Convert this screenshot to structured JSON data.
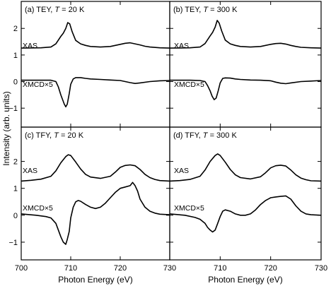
{
  "chart_data": {
    "type": "line",
    "xlabel": "Photon Energy (eV)",
    "ylabel": "Intensity (arb. units)",
    "xlim": [
      700,
      730
    ],
    "ylim": [
      -1.5,
      2.75
    ],
    "x_ticks": [
      700,
      710,
      720,
      730
    ],
    "y_ticks": [
      -1,
      0,
      1,
      2
    ],
    "grid": false,
    "panels": [
      {
        "id": "a",
        "title_prefix": "(a) TEY, ",
        "title_var": "T",
        "title_suffix": " = 20 K",
        "series": [
          {
            "name": "XAS",
            "x": [
              700,
              704,
              706,
              707,
              708,
              708.5,
              709,
              709.4,
              709.8,
              710.3,
              711,
              712,
              713,
              714,
              716,
              718,
              720,
              721,
              722,
              723,
              724,
              725,
              726,
              728,
              730
            ],
            "y": [
              1.26,
              1.27,
              1.3,
              1.42,
              1.7,
              1.82,
              2.0,
              2.22,
              2.17,
              1.87,
              1.55,
              1.42,
              1.36,
              1.32,
              1.3,
              1.32,
              1.4,
              1.44,
              1.46,
              1.42,
              1.38,
              1.33,
              1.3,
              1.27,
              1.26
            ]
          },
          {
            "name": "XMCD×5",
            "x": [
              700,
              704,
              706,
              707,
              707.5,
              708,
              708.3,
              708.7,
              709,
              709.3,
              709.7,
              710,
              710.5,
              711,
              712,
              713,
              714,
              716,
              718,
              720,
              721,
              722,
              723,
              724,
              726,
              728,
              730
            ],
            "y": [
              0.05,
              0.05,
              0.05,
              0.0,
              -0.2,
              -0.5,
              -0.65,
              -0.85,
              -0.95,
              -0.85,
              -0.45,
              -0.1,
              0.1,
              0.15,
              0.15,
              0.12,
              0.1,
              0.08,
              0.06,
              0.04,
              0.0,
              -0.04,
              -0.07,
              -0.05,
              0.0,
              0.03,
              0.04
            ]
          }
        ]
      },
      {
        "id": "b",
        "title_prefix": "(b) TEY, ",
        "title_var": "T",
        "title_suffix": " = 300 K",
        "series": [
          {
            "name": "XAS",
            "x": [
              700,
              704,
              706,
              707,
              708,
              708.5,
              709,
              709.4,
              709.8,
              710.3,
              711,
              712,
              713,
              714,
              716,
              718,
              720,
              721,
              722,
              723,
              724,
              725,
              726,
              728,
              730
            ],
            "y": [
              1.26,
              1.27,
              1.3,
              1.43,
              1.72,
              1.85,
              2.05,
              2.3,
              2.2,
              1.9,
              1.56,
              1.42,
              1.36,
              1.32,
              1.3,
              1.32,
              1.4,
              1.43,
              1.44,
              1.41,
              1.36,
              1.32,
              1.29,
              1.27,
              1.26
            ]
          },
          {
            "name": "XMCD×5",
            "x": [
              700,
              704,
              706,
              707,
              707.5,
              708,
              708.4,
              708.8,
              709.2,
              709.6,
              710,
              710.5,
              711,
              712,
              713,
              714,
              716,
              718,
              720,
              721,
              722,
              723,
              724,
              726,
              728,
              730
            ],
            "y": [
              0.05,
              0.05,
              0.04,
              0.0,
              -0.15,
              -0.35,
              -0.55,
              -0.68,
              -0.62,
              -0.35,
              -0.05,
              0.12,
              0.14,
              0.13,
              0.1,
              0.08,
              0.06,
              0.05,
              0.03,
              -0.02,
              -0.06,
              -0.08,
              -0.05,
              0.0,
              0.02,
              0.04
            ]
          }
        ]
      },
      {
        "id": "c",
        "title_prefix": "(c) TFY, ",
        "title_var": "T",
        "title_suffix": " = 20 K",
        "series": [
          {
            "name": "XAS",
            "x": [
              700,
              702,
              704,
              706,
              707,
              708,
              709,
              709.5,
              710,
              711,
              712,
              713,
              714,
              716,
              718,
              719,
              720,
              721,
              722,
              723,
              724,
              725,
              726,
              727,
              728,
              730
            ],
            "y": [
              1.27,
              1.3,
              1.34,
              1.45,
              1.65,
              1.95,
              2.18,
              2.25,
              2.22,
              1.98,
              1.72,
              1.52,
              1.42,
              1.37,
              1.45,
              1.6,
              1.78,
              1.85,
              1.87,
              1.84,
              1.7,
              1.52,
              1.4,
              1.33,
              1.29,
              1.27
            ]
          },
          {
            "name": "XMCD×5",
            "x": [
              700,
              703,
              705,
              706,
              707,
              707.5,
              708,
              708.5,
              709,
              709.3,
              709.7,
              710,
              710.5,
              711,
              711.5,
              712,
              713,
              714,
              715,
              716,
              717,
              718,
              719,
              720,
              721,
              722,
              722.5,
              723,
              723.5,
              724,
              725,
              726,
              727,
              728,
              730
            ],
            "y": [
              0.05,
              0.0,
              -0.05,
              -0.1,
              -0.3,
              -0.55,
              -0.8,
              -1.0,
              -1.08,
              -0.9,
              -0.6,
              -0.1,
              0.3,
              0.5,
              0.55,
              0.52,
              0.4,
              0.3,
              0.25,
              0.3,
              0.45,
              0.65,
              0.85,
              1.0,
              1.05,
              1.1,
              1.22,
              1.1,
              0.9,
              0.6,
              0.3,
              0.15,
              0.08,
              0.04,
              0.02
            ]
          }
        ]
      },
      {
        "id": "d",
        "title_prefix": "(d) TFY, ",
        "title_var": "T",
        "title_suffix": " = 300 K",
        "series": [
          {
            "name": "XAS",
            "x": [
              700,
              702,
              704,
              706,
              707,
              708,
              709,
              709.5,
              710,
              711,
              712,
              713,
              714,
              716,
              718,
              719,
              720,
              721,
              722,
              723,
              724,
              725,
              726,
              727,
              728,
              730
            ],
            "y": [
              1.27,
              1.29,
              1.33,
              1.45,
              1.68,
              2.0,
              2.22,
              2.28,
              2.22,
              1.97,
              1.7,
              1.5,
              1.4,
              1.35,
              1.43,
              1.58,
              1.76,
              1.84,
              1.86,
              1.83,
              1.68,
              1.5,
              1.38,
              1.32,
              1.28,
              1.27
            ]
          },
          {
            "name": "XMCD×5",
            "x": [
              700,
              703,
              705,
              706,
              707,
              707.5,
              708,
              708.5,
              709,
              709.5,
              710,
              710.5,
              711,
              712,
              713,
              714,
              715,
              716,
              717,
              718,
              719,
              720,
              721,
              722,
              723,
              724,
              725,
              726,
              727,
              728,
              730
            ],
            "y": [
              0.05,
              0.0,
              -0.08,
              -0.15,
              -0.3,
              -0.45,
              -0.55,
              -0.62,
              -0.55,
              -0.3,
              -0.05,
              0.15,
              0.2,
              0.15,
              0.05,
              0.0,
              0.0,
              0.05,
              0.2,
              0.4,
              0.55,
              0.65,
              0.68,
              0.7,
              0.72,
              0.6,
              0.35,
              0.15,
              0.05,
              0.02,
              0.0
            ]
          }
        ]
      }
    ]
  }
}
